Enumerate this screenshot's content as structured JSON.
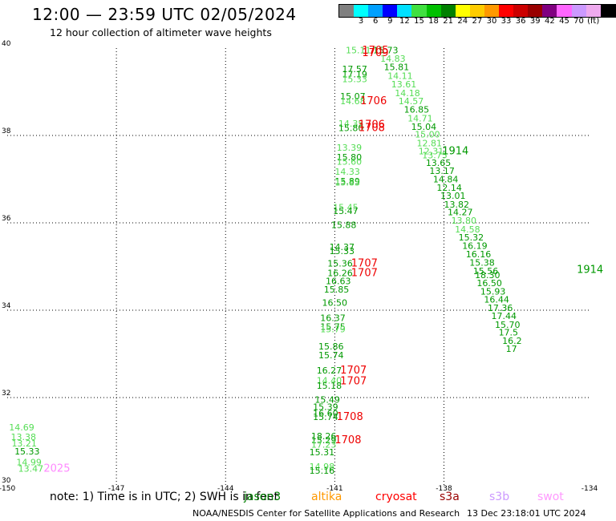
{
  "header": {
    "title": "12:00 — 23:59 UTC 02/05/2024",
    "subtitle": "12 hour collection of altimeter wave heights"
  },
  "scale": {
    "unit": "(ft)",
    "colors": [
      "#808080",
      "#00ffff",
      "#00a0ff",
      "#0000ff",
      "#00e0ff",
      "#40e040",
      "#00c000",
      "#008000",
      "#ffff00",
      "#ffcc00",
      "#ff9900",
      "#ff0000",
      "#cc0000",
      "#990000",
      "#800080",
      "#ff66ff",
      "#cc99ff",
      "#eeaaee",
      "#000000"
    ],
    "labels": [
      "3",
      "6",
      "9",
      "12",
      "15",
      "18",
      "21",
      "24",
      "27",
      "30",
      "33",
      "36",
      "39",
      "42",
      "45",
      "70"
    ]
  },
  "legend": {
    "note": "note: 1) Time is in UTC; 2) SWH is in feet",
    "satellites": [
      {
        "name": "jason3",
        "color": "#008000"
      },
      {
        "name": "altika",
        "color": "#ff9900"
      },
      {
        "name": "cryosat",
        "color": "#ff0000"
      },
      {
        "name": "s3a",
        "color": "#990000"
      },
      {
        "name": "s3b",
        "color": "#cc99ff"
      },
      {
        "name": "swot",
        "color": "#ff99ff"
      }
    ]
  },
  "footer": {
    "credit": "NOAA/NESDIS Center for Satellite Applications and Research",
    "timestamp": "13 Dec 23:18:01 UTC 2024"
  },
  "map": {
    "lon_range": [
      -150,
      -134
    ],
    "lat_range": [
      30,
      40
    ],
    "lon_ticks": [
      "-150",
      "-147",
      "-144",
      "-141",
      "-138",
      "-134"
    ],
    "lat_ticks": [
      "40",
      "38",
      "36",
      "34",
      "32",
      "30"
    ],
    "colors": {
      "lg": "#55dd55",
      "dg": "#009900",
      "rd": "#ee0000",
      "pk": "#ff88ff"
    },
    "points": [
      {
        "lon": -140.7,
        "lat": 39.88,
        "text": "15.11",
        "c": "lg"
      },
      {
        "lon": -139.95,
        "lat": 39.88,
        "text": "15.73",
        "c": "dg"
      },
      {
        "lon": -139.75,
        "lat": 39.69,
        "text": "14.83",
        "c": "lg"
      },
      {
        "lon": -139.65,
        "lat": 39.5,
        "text": "15.81",
        "c": "dg"
      },
      {
        "lon": -140.8,
        "lat": 39.45,
        "text": "17.57",
        "c": "dg"
      },
      {
        "lon": -140.8,
        "lat": 39.33,
        "text": "17.19",
        "c": "dg"
      },
      {
        "lon": -140.8,
        "lat": 39.22,
        "text": "15.33",
        "c": "lg"
      },
      {
        "lon": -139.55,
        "lat": 39.29,
        "text": "14.11",
        "c": "lg"
      },
      {
        "lon": -139.45,
        "lat": 39.1,
        "text": "13.61",
        "c": "lg"
      },
      {
        "lon": -140.85,
        "lat": 38.83,
        "text": "15.07",
        "c": "dg"
      },
      {
        "lon": -140.85,
        "lat": 38.72,
        "text": "14.68",
        "c": "lg"
      },
      {
        "lon": -139.35,
        "lat": 38.9,
        "text": "14.18",
        "c": "lg"
      },
      {
        "lon": -139.25,
        "lat": 38.72,
        "text": "14.57",
        "c": "lg"
      },
      {
        "lon": -139.1,
        "lat": 38.52,
        "text": "16.85",
        "c": "dg"
      },
      {
        "lon": -139.0,
        "lat": 38.32,
        "text": "14.71",
        "c": "lg"
      },
      {
        "lon": -138.9,
        "lat": 38.13,
        "text": "15.04",
        "c": "dg"
      },
      {
        "lon": -140.9,
        "lat": 38.2,
        "text": "14.35",
        "c": "lg"
      },
      {
        "lon": -140.9,
        "lat": 38.1,
        "text": "15.80",
        "c": "dg"
      },
      {
        "lon": -138.8,
        "lat": 37.95,
        "text": "15.00",
        "c": "lg"
      },
      {
        "lon": -138.75,
        "lat": 37.75,
        "text": "12.81",
        "c": "lg"
      },
      {
        "lon": -138.7,
        "lat": 37.57,
        "text": "12.31",
        "c": "lg"
      },
      {
        "lon": -138.6,
        "lat": 37.48,
        "text": "13.75",
        "c": "lg"
      },
      {
        "lon": -140.95,
        "lat": 37.65,
        "text": "13.39",
        "c": "lg"
      },
      {
        "lon": -140.95,
        "lat": 37.43,
        "text": "15.80",
        "c": "dg"
      },
      {
        "lon": -140.95,
        "lat": 37.33,
        "text": "15.60",
        "c": "lg"
      },
      {
        "lon": -138.5,
        "lat": 37.3,
        "text": "13.65",
        "c": "dg"
      },
      {
        "lon": -138.4,
        "lat": 37.12,
        "text": "13.17",
        "c": "dg"
      },
      {
        "lon": -141.0,
        "lat": 37.1,
        "text": "14.33",
        "c": "lg"
      },
      {
        "lon": -141.0,
        "lat": 36.88,
        "text": "15.89",
        "c": "dg"
      },
      {
        "lon": -141.0,
        "lat": 36.85,
        "text": "15.83",
        "c": "lg"
      },
      {
        "lon": -138.3,
        "lat": 36.93,
        "text": "14.84",
        "c": "dg"
      },
      {
        "lon": -138.2,
        "lat": 36.73,
        "text": "12.14",
        "c": "dg"
      },
      {
        "lon": -138.1,
        "lat": 36.55,
        "text": "13.01",
        "c": "dg"
      },
      {
        "lon": -138.0,
        "lat": 36.35,
        "text": "13.82",
        "c": "dg"
      },
      {
        "lon": -141.05,
        "lat": 36.28,
        "text": "15.45",
        "c": "lg"
      },
      {
        "lon": -141.05,
        "lat": 36.2,
        "text": "15.47",
        "c": "dg"
      },
      {
        "lon": -137.9,
        "lat": 36.17,
        "text": "14.27",
        "c": "dg"
      },
      {
        "lon": -137.8,
        "lat": 35.98,
        "text": "13.80",
        "c": "lg"
      },
      {
        "lon": -141.1,
        "lat": 35.88,
        "text": "15.88",
        "c": "dg"
      },
      {
        "lon": -137.7,
        "lat": 35.78,
        "text": "14.58",
        "c": "lg"
      },
      {
        "lon": -137.6,
        "lat": 35.6,
        "text": "15.32",
        "c": "dg"
      },
      {
        "lon": -141.15,
        "lat": 35.38,
        "text": "14.37",
        "c": "dg"
      },
      {
        "lon": -141.15,
        "lat": 35.28,
        "text": "15.33",
        "c": "dg"
      },
      {
        "lon": -137.5,
        "lat": 35.4,
        "text": "16.19",
        "c": "dg"
      },
      {
        "lon": -137.4,
        "lat": 35.21,
        "text": "16.16",
        "c": "dg"
      },
      {
        "lon": -141.2,
        "lat": 35.0,
        "text": "15.36",
        "c": "dg"
      },
      {
        "lon": -137.3,
        "lat": 35.02,
        "text": "15.38",
        "c": "dg"
      },
      {
        "lon": -141.2,
        "lat": 34.78,
        "text": "16.26",
        "c": "dg"
      },
      {
        "lon": -137.2,
        "lat": 34.83,
        "text": "15.56",
        "c": "dg"
      },
      {
        "lon": -137.15,
        "lat": 34.73,
        "text": "18.30",
        "c": "dg"
      },
      {
        "lon": -141.25,
        "lat": 34.6,
        "text": "16.63",
        "c": "dg"
      },
      {
        "lon": -137.1,
        "lat": 34.55,
        "text": "16.50",
        "c": "dg"
      },
      {
        "lon": -141.3,
        "lat": 34.4,
        "text": "15.85",
        "c": "dg"
      },
      {
        "lon": -137.0,
        "lat": 34.36,
        "text": "15.93",
        "c": "dg"
      },
      {
        "lon": -136.9,
        "lat": 34.17,
        "text": "16.44",
        "c": "dg"
      },
      {
        "lon": -141.35,
        "lat": 34.1,
        "text": "16.50",
        "c": "dg"
      },
      {
        "lon": -136.8,
        "lat": 33.98,
        "text": "17.36",
        "c": "dg"
      },
      {
        "lon": -141.4,
        "lat": 33.75,
        "text": "16.37",
        "c": "dg"
      },
      {
        "lon": -136.7,
        "lat": 33.8,
        "text": "17.44",
        "c": "dg"
      },
      {
        "lon": -141.4,
        "lat": 33.55,
        "text": "15.75",
        "c": "dg"
      },
      {
        "lon": -141.4,
        "lat": 33.5,
        "text": "15.79",
        "c": "lg"
      },
      {
        "lon": -136.6,
        "lat": 33.6,
        "text": "15.70",
        "c": "dg"
      },
      {
        "lon": -136.5,
        "lat": 33.42,
        "text": "17.5",
        "c": "dg"
      },
      {
        "lon": -136.4,
        "lat": 33.23,
        "text": "16.2",
        "c": "dg"
      },
      {
        "lon": -136.3,
        "lat": 33.05,
        "text": "17",
        "c": "dg"
      },
      {
        "lon": -141.45,
        "lat": 33.1,
        "text": "15.86",
        "c": "dg"
      },
      {
        "lon": -141.45,
        "lat": 32.9,
        "text": "15.74",
        "c": "dg"
      },
      {
        "lon": -141.5,
        "lat": 32.55,
        "text": "16.27",
        "c": "dg"
      },
      {
        "lon": -141.5,
        "lat": 32.32,
        "text": "14.40",
        "c": "lg"
      },
      {
        "lon": -141.5,
        "lat": 32.2,
        "text": "15.18",
        "c": "dg"
      },
      {
        "lon": -141.55,
        "lat": 31.88,
        "text": "15.49",
        "c": "dg"
      },
      {
        "lon": -141.6,
        "lat": 31.72,
        "text": "15.39",
        "c": "dg"
      },
      {
        "lon": -141.6,
        "lat": 31.57,
        "text": "16.60",
        "c": "dg"
      },
      {
        "lon": -141.6,
        "lat": 31.49,
        "text": "15.74",
        "c": "dg"
      },
      {
        "lon": -141.65,
        "lat": 31.05,
        "text": "18.26",
        "c": "dg"
      },
      {
        "lon": -141.65,
        "lat": 30.95,
        "text": "15.29",
        "c": "dg"
      },
      {
        "lon": -141.65,
        "lat": 30.85,
        "text": "17.23",
        "c": "lg"
      },
      {
        "lon": -141.7,
        "lat": 30.68,
        "text": "15.31",
        "c": "dg"
      },
      {
        "lon": -141.7,
        "lat": 30.35,
        "text": "14.98",
        "c": "lg"
      },
      {
        "lon": -141.7,
        "lat": 30.26,
        "text": "15.16",
        "c": "dg"
      },
      {
        "lon": -149.95,
        "lat": 31.25,
        "text": "14.69",
        "c": "lg"
      },
      {
        "lon": -149.9,
        "lat": 31.03,
        "text": "13.38",
        "c": "lg"
      },
      {
        "lon": -149.88,
        "lat": 30.88,
        "text": "13.21",
        "c": "lg"
      },
      {
        "lon": -149.8,
        "lat": 30.7,
        "text": "15.33",
        "c": "dg"
      },
      {
        "lon": -149.75,
        "lat": 30.45,
        "text": "14.99",
        "c": "lg"
      },
      {
        "lon": -149.7,
        "lat": 30.3,
        "text": "13.47",
        "c": "lg"
      }
    ],
    "passes": [
      {
        "lon": -140.25,
        "lat": 39.87,
        "text": "1705",
        "c": "rd"
      },
      {
        "lon": -140.25,
        "lat": 39.82,
        "text": "1709",
        "c": "rd"
      },
      {
        "lon": -140.3,
        "lat": 38.72,
        "text": "1706",
        "c": "rd"
      },
      {
        "lon": -140.35,
        "lat": 38.17,
        "text": "1706",
        "c": "rd"
      },
      {
        "lon": -140.35,
        "lat": 38.1,
        "text": "1708",
        "c": "rd"
      },
      {
        "lon": -138.05,
        "lat": 37.57,
        "text": "1914",
        "c": "dg"
      },
      {
        "lon": -140.55,
        "lat": 35.0,
        "text": "1707",
        "c": "rd"
      },
      {
        "lon": -140.55,
        "lat": 34.78,
        "text": "1707",
        "c": "rd"
      },
      {
        "lon": -134.35,
        "lat": 34.85,
        "text": "1914",
        "c": "dg"
      },
      {
        "lon": -140.85,
        "lat": 32.55,
        "text": "1707",
        "c": "rd"
      },
      {
        "lon": -140.85,
        "lat": 32.3,
        "text": "1707",
        "c": "rd"
      },
      {
        "lon": -140.95,
        "lat": 31.49,
        "text": "1708",
        "c": "rd"
      },
      {
        "lon": -141.0,
        "lat": 30.95,
        "text": "1708",
        "c": "rd"
      },
      {
        "lon": -149.0,
        "lat": 30.3,
        "text": "2025",
        "c": "pk"
      }
    ]
  }
}
